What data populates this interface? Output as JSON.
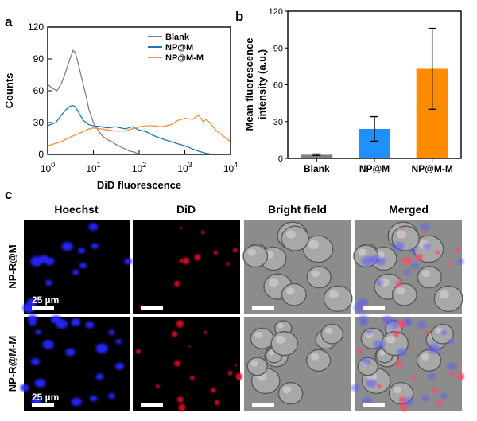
{
  "panel_labels": {
    "a": "a",
    "b": "b",
    "c": "c"
  },
  "chart_data": [
    {
      "id": "a",
      "type": "line",
      "xlabel": "DiD fluorescence",
      "ylabel": "Counts",
      "x_scale": "log",
      "xlim": [
        1,
        10000
      ],
      "ylim": [
        0,
        120
      ],
      "x_ticks": [
        {
          "value": 1,
          "base": "10",
          "exp": "0"
        },
        {
          "value": 10,
          "base": "10",
          "exp": "1"
        },
        {
          "value": 100,
          "base": "10",
          "exp": "2"
        },
        {
          "value": 1000,
          "base": "10",
          "exp": "3"
        },
        {
          "value": 10000,
          "base": "10",
          "exp": "4"
        }
      ],
      "y_ticks": [
        "0",
        "30",
        "60",
        "90",
        "120"
      ],
      "legend_position": "top-right",
      "series": [
        {
          "name": "Blank",
          "color": "#808080",
          "x": [
            1,
            1.3,
            1.6,
            2,
            2.4,
            2.8,
            3.2,
            3.6,
            4,
            4.5,
            5,
            6,
            7,
            8,
            10,
            13,
            16,
            20,
            25,
            32,
            40,
            50,
            63,
            80,
            100
          ],
          "y": [
            66,
            62,
            60,
            67,
            76,
            85,
            92,
            98,
            96,
            88,
            80,
            66,
            54,
            42,
            30,
            22,
            17,
            14,
            12,
            9,
            7,
            5,
            3,
            2,
            0
          ]
        },
        {
          "name": "NP@M",
          "color": "#1f77b4",
          "x": [
            1,
            1.5,
            2,
            2.5,
            3,
            3.5,
            4,
            5,
            6,
            8,
            10,
            15,
            20,
            30,
            50,
            70,
            100,
            150,
            200,
            300,
            500,
            700,
            1000,
            1500,
            2000,
            3000,
            4000
          ],
          "y": [
            27,
            30,
            37,
            42,
            45,
            46,
            45,
            38,
            32,
            28,
            27,
            26,
            25,
            26,
            24,
            26,
            23,
            21,
            18,
            15,
            12,
            10,
            8,
            5,
            3,
            1,
            0
          ]
        },
        {
          "name": "NP@M-M",
          "color": "#ff8c3a",
          "x": [
            1,
            2,
            3,
            5,
            8,
            10,
            15,
            20,
            30,
            50,
            70,
            100,
            150,
            200,
            300,
            500,
            700,
            1000,
            1500,
            2000,
            2500,
            3000,
            4000,
            5000,
            7000,
            10000
          ],
          "y": [
            8,
            12,
            16,
            20,
            24,
            25,
            24,
            23,
            22,
            22,
            24,
            26,
            27,
            27,
            26,
            28,
            32,
            34,
            33,
            37,
            31,
            33,
            27,
            22,
            17,
            12
          ]
        }
      ]
    },
    {
      "id": "b",
      "type": "bar",
      "categories": [
        "Blank",
        "NP@M",
        "NP@M-M"
      ],
      "values": [
        3,
        24,
        73
      ],
      "errors": [
        0.6,
        10,
        33
      ],
      "ylabel_line1": "Mean fluorescence",
      "ylabel_line2": "intensity (a.u.)",
      "ylim": [
        0,
        120
      ],
      "y_ticks": [
        "0",
        "30",
        "60",
        "90",
        "120"
      ],
      "colors": [
        "#808080",
        "#1e90ff",
        "#ff8c00"
      ]
    }
  ],
  "panel_c": {
    "column_headers": [
      "Hoechst",
      "DiD",
      "Bright field",
      "Merged"
    ],
    "row_headers": [
      "NP-R@M",
      "NP-R@M-M"
    ],
    "scale_bar_label": "25 µm"
  }
}
